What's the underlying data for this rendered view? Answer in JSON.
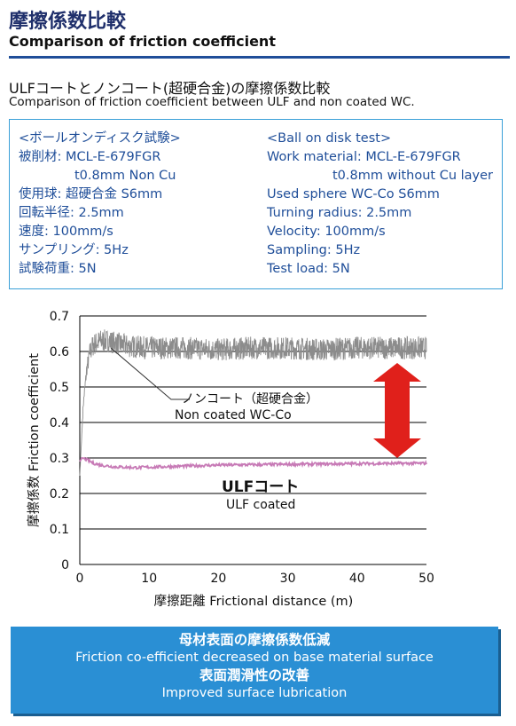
{
  "header": {
    "title_jp": "摩擦係数比較",
    "title_en": "Comparison of friction coefficient",
    "subtitle_jp": "ULFコートとノンコート(超硬合金)の摩擦係数比較",
    "subtitle_en": "Comparison of friction coefficient between ULF and non coated WC."
  },
  "conditions": {
    "jp": [
      "<ボールオンディスク試験>",
      "被削材: MCL-E-679FGR",
      "t0.8mm Non Cu",
      "使用球: 超硬合金 S6mm",
      "回転半径: 2.5mm",
      "速度: 100mm/s",
      "サンプリング: 5Hz",
      "試験荷重: 5N"
    ],
    "en": [
      "<Ball on disk test>",
      "Work material: MCL-E-679FGR",
      "t0.8mm without Cu layer",
      "Used sphere WC-Co S6mm",
      "Turning radius: 2.5mm",
      "Velocity: 100mm/s",
      "Sampling: 5Hz",
      "Test load: 5N"
    ]
  },
  "chart_data": {
    "type": "line",
    "xlabel": "摩擦距離 Frictional distance (m)",
    "ylabel": "摩擦係数 Friction coefficient",
    "xlim": [
      0,
      50
    ],
    "ylim": [
      0,
      0.7
    ],
    "x_ticks": [
      "0",
      "10",
      "20",
      "30",
      "40",
      "50"
    ],
    "y_ticks": [
      "0",
      "0.1",
      "0.2",
      "0.3",
      "0.4",
      "0.5",
      "0.6",
      "0.7"
    ],
    "grid": true,
    "series": [
      {
        "name_jp": "ノンコート（超硬合金）",
        "name_en": "Non coated WC-Co",
        "color": "#8c8c8c",
        "x": [
          0,
          0.5,
          1,
          1.5,
          2,
          3,
          4,
          5,
          7,
          10,
          15,
          20,
          25,
          30,
          35,
          40,
          45,
          50
        ],
        "y": [
          0.25,
          0.45,
          0.55,
          0.6,
          0.62,
          0.63,
          0.63,
          0.625,
          0.615,
          0.61,
          0.61,
          0.605,
          0.61,
          0.61,
          0.605,
          0.61,
          0.61,
          0.61
        ]
      },
      {
        "name_jp": "ULFコート",
        "name_en": "ULF coated",
        "color": "#c77ab6",
        "x": [
          0,
          0.3,
          1,
          2,
          3,
          5,
          8,
          10,
          15,
          20,
          30,
          40,
          50
        ],
        "y": [
          0.29,
          0.3,
          0.295,
          0.285,
          0.28,
          0.275,
          0.273,
          0.274,
          0.277,
          0.28,
          0.282,
          0.284,
          0.285
        ]
      }
    ],
    "annotations": {
      "arrow_color": "#e0201b"
    }
  },
  "banner": {
    "line1": "母材表面の摩擦係数低減",
    "line2": "Friction co-efficient decreased on base material surface",
    "line3": "表面潤滑性の改善",
    "line4": "Improved surface lubrication",
    "bg_color": "#2a8fd4"
  }
}
